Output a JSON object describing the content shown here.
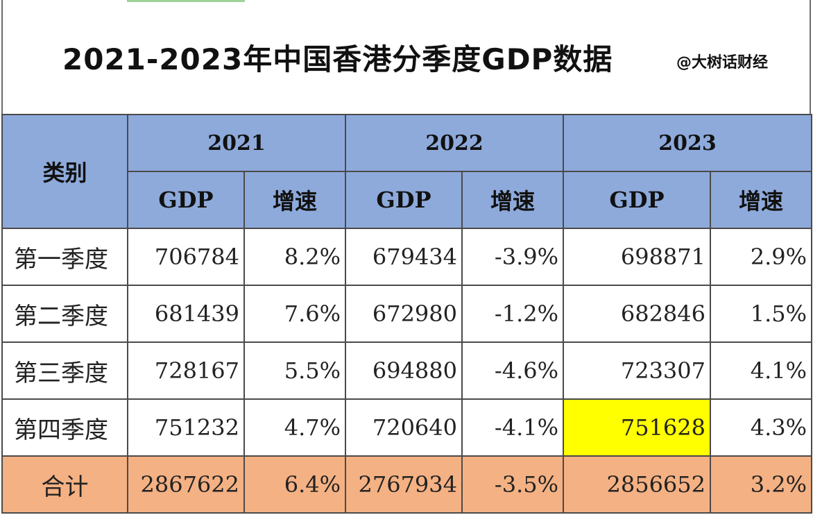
{
  "title": "2021-2023年中国香港分季度GDP数据",
  "watermark": "@大树话财经",
  "chart_data": {
    "type": "table",
    "category_header": "类别",
    "years": [
      "2021",
      "2022",
      "2023"
    ],
    "sub_headers": [
      "GDP",
      "增速"
    ],
    "rows": [
      {
        "label": "第一季度",
        "values": [
          "706784",
          "8.2%",
          "679434",
          "-3.9%",
          "698871",
          "2.9%"
        ]
      },
      {
        "label": "第二季度",
        "values": [
          "681439",
          "7.6%",
          "672980",
          "-1.2%",
          "682846",
          "1.5%"
        ]
      },
      {
        "label": "第三季度",
        "values": [
          "728167",
          "5.5%",
          "694880",
          "-4.6%",
          "723307",
          "4.1%"
        ]
      },
      {
        "label": "第四季度",
        "values": [
          "751232",
          "4.7%",
          "720640",
          "-4.1%",
          "751628",
          "4.3%"
        ]
      }
    ],
    "total": {
      "label": "合计",
      "values": [
        "2867622",
        "6.4%",
        "2767934",
        "-3.5%",
        "2856652",
        "3.2%"
      ]
    },
    "highlight": {
      "row": "第四季度",
      "year": "2023",
      "column": "GDP",
      "color": "#ffff00"
    }
  },
  "colors": {
    "header_bg": "#8eaadb",
    "total_bg": "#f4b183",
    "highlight_bg": "#ffff00"
  }
}
